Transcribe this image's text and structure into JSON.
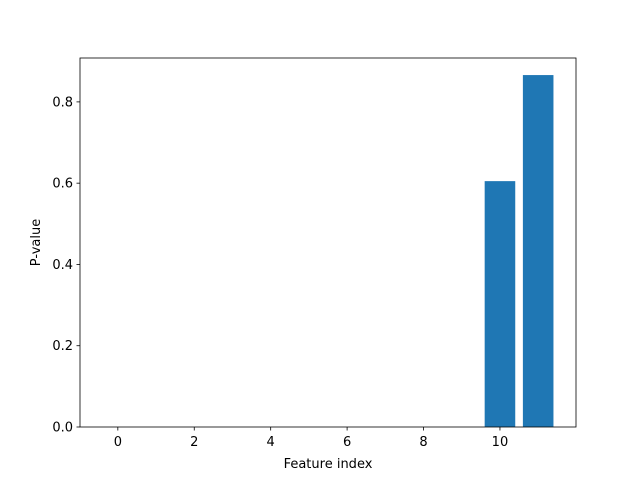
{
  "chart_data": {
    "type": "bar",
    "x_label": "Feature index",
    "y_label": "P-value",
    "x": [
      0,
      1,
      2,
      3,
      4,
      5,
      6,
      7,
      8,
      9,
      10,
      11
    ],
    "values": [
      0,
      0,
      0,
      0,
      0,
      0,
      0,
      0,
      0,
      0,
      0.605,
      0.866
    ],
    "bar_width": 0.8,
    "color": "#1f77b4",
    "xlim": [
      -0.99,
      11.99
    ],
    "xticks": [
      0,
      2,
      4,
      6,
      8,
      10
    ],
    "ylim": [
      0,
      0.908
    ],
    "yticks": [
      {
        "value": 0,
        "label": "0.0"
      },
      {
        "value": 0.2,
        "label": "0.2"
      },
      {
        "value": 0.4,
        "label": "0.4"
      },
      {
        "value": 0.6,
        "label": "0.6"
      },
      {
        "value": 0.8,
        "label": "0.8"
      }
    ],
    "grid": false
  }
}
